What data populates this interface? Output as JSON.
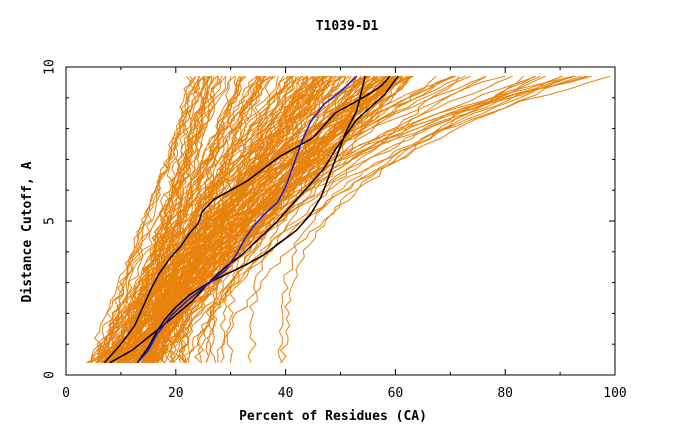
{
  "chart_data": {
    "type": "line",
    "title": "T1039-D1",
    "xlabel": "Percent of Residues (CA)",
    "ylabel": "Distance Cutoff, A",
    "xlim": [
      0,
      100
    ],
    "ylim": [
      0,
      10
    ],
    "xticks": [
      0,
      20,
      40,
      60,
      80,
      100
    ],
    "yticks": [
      0,
      5,
      10
    ],
    "grid": false,
    "legend": "none",
    "colors": {
      "background_series": "#e8820c",
      "highlight_black": "#000000",
      "highlight_blue": "#1a1adb",
      "axis": "#000000"
    },
    "background_series_description": "many orange GDT curves from y=0.4 to y=9.7",
    "series": [
      {
        "color": "black",
        "x": [
          7,
          10,
          12.5,
          14,
          15.5,
          17,
          19,
          21,
          22.5,
          24,
          24.8,
          27,
          30,
          33,
          36,
          39,
          42,
          45,
          47,
          49,
          52,
          55,
          57.5,
          59
        ],
        "y": [
          0.4,
          1.0,
          1.6,
          2.2,
          2.8,
          3.3,
          3.8,
          4.2,
          4.6,
          4.9,
          5.3,
          5.7,
          6.0,
          6.3,
          6.7,
          7.1,
          7.4,
          7.7,
          8.1,
          8.5,
          8.8,
          9.1,
          9.4,
          9.7
        ]
      },
      {
        "color": "black",
        "x": [
          8,
          12,
          15.5,
          19,
          23,
          26,
          29,
          32,
          35,
          38,
          41,
          44,
          47,
          49,
          51,
          53,
          55.5,
          58,
          60.5
        ],
        "y": [
          0.4,
          0.8,
          1.3,
          1.8,
          2.4,
          3.0,
          3.5,
          3.9,
          4.4,
          4.9,
          5.5,
          6.1,
          6.7,
          7.3,
          7.8,
          8.3,
          8.7,
          9.1,
          9.7
        ]
      },
      {
        "color": "black",
        "x": [
          13,
          15,
          16.5,
          18,
          20,
          22.5,
          26,
          29.5,
          33,
          36,
          39,
          42,
          44.5,
          46.5,
          48,
          49.5,
          51,
          53,
          54.5
        ],
        "y": [
          0.4,
          0.9,
          1.4,
          1.8,
          2.2,
          2.6,
          3.0,
          3.3,
          3.6,
          3.9,
          4.3,
          4.7,
          5.2,
          5.8,
          6.5,
          7.2,
          7.9,
          8.6,
          9.7
        ]
      },
      {
        "color": "blue",
        "x": [
          13,
          15,
          16.5,
          19,
          22,
          25.5,
          29,
          31,
          32.5,
          34,
          36,
          38.5,
          40,
          41,
          42,
          43,
          44.5,
          47,
          50,
          53
        ],
        "y": [
          0.4,
          0.8,
          1.3,
          1.9,
          2.4,
          2.9,
          3.4,
          3.9,
          4.4,
          4.8,
          5.2,
          5.6,
          6.1,
          6.6,
          7.1,
          7.6,
          8.2,
          8.8,
          9.2,
          9.7
        ]
      }
    ]
  }
}
